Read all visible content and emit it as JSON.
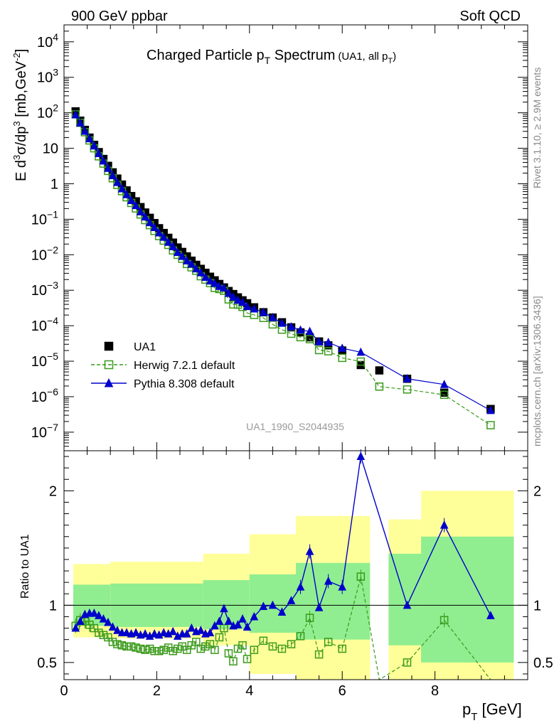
{
  "header": {
    "left": "900 GeV ppbar",
    "right": "Soft QCD"
  },
  "side_labels": {
    "rivet": "Rivet 3.1.10, ≥ 2.9M events",
    "mcplots": "mcplots.cern.ch [arXiv:1306.3436]"
  },
  "chart_data": [
    {
      "type": "scatter",
      "panel": "main",
      "title": "Charged Particle p_T Spectrum",
      "title_parts": {
        "main": "Charged Particle p",
        "sub": "T",
        "rest": " Spectrum",
        "small": "(UA1, all p",
        "small_sub": "T",
        "small_close": ")"
      },
      "ylabel": "E d³σ/dp³ [mb,GeV⁻²]",
      "ylabel_parts": {
        "e": "E d",
        "sup1": "3",
        "sigma": "σ/dp",
        "sup2": "3",
        "unit": " [mb,GeV",
        "sup3": "-2",
        "close": "]"
      },
      "y_scale": "log",
      "ylim": [
        3e-08,
        30000.0
      ],
      "xlim": [
        0,
        10
      ],
      "y_ticks": [
        "10^4",
        "10^3",
        "10^2",
        "10",
        "1",
        "10^-1",
        "10^-2",
        "10^-3",
        "10^-4",
        "10^-5",
        "10^-6",
        "10^-7"
      ],
      "watermark": "UA1_1990_S2044935",
      "legend_position": "bottom-left",
      "series": [
        {
          "name": "UA1",
          "color": "#000000",
          "marker": "filled-square",
          "x": [
            0.25,
            0.35,
            0.45,
            0.55,
            0.65,
            0.75,
            0.85,
            0.95,
            1.05,
            1.15,
            1.25,
            1.35,
            1.45,
            1.55,
            1.65,
            1.75,
            1.85,
            1.95,
            2.05,
            2.15,
            2.25,
            2.35,
            2.45,
            2.55,
            2.65,
            2.75,
            2.85,
            2.95,
            3.05,
            3.15,
            3.25,
            3.35,
            3.45,
            3.55,
            3.65,
            3.75,
            3.85,
            3.95,
            4.1,
            4.3,
            4.5,
            4.7,
            4.9,
            5.1,
            5.3,
            5.5,
            5.7,
            6.0,
            6.4,
            6.8,
            7.4,
            8.2,
            9.2
          ],
          "y": [
            110,
            60,
            33,
            20,
            12.5,
            7.8,
            5.0,
            3.2,
            2.1,
            1.4,
            0.95,
            0.65,
            0.45,
            0.32,
            0.22,
            0.155,
            0.11,
            0.078,
            0.056,
            0.041,
            0.03,
            0.022,
            0.016,
            0.012,
            0.009,
            0.0068,
            0.0052,
            0.004,
            0.0031,
            0.0024,
            0.0019,
            0.0015,
            0.0012,
            0.00095,
            0.00078,
            0.00063,
            0.00052,
            0.00043,
            0.00033,
            0.00024,
            0.00017,
            0.000125,
            9e-05,
            6.5e-05,
            4.7e-05,
            3.6e-05,
            2.8e-05,
            2e-05,
            7.8e-06,
            5.5e-06,
            3.2e-06,
            1.3e-06,
            4.5e-07
          ]
        },
        {
          "name": "Herwig 7.2.1 default",
          "color": "#3a9a1a",
          "marker": "open-square",
          "line": "dashed",
          "x": [
            0.25,
            0.35,
            0.45,
            0.55,
            0.65,
            0.75,
            0.85,
            0.95,
            1.05,
            1.15,
            1.25,
            1.35,
            1.45,
            1.55,
            1.65,
            1.75,
            1.85,
            1.95,
            2.05,
            2.15,
            2.25,
            2.35,
            2.45,
            2.55,
            2.65,
            2.75,
            2.85,
            2.95,
            3.05,
            3.15,
            3.25,
            3.35,
            3.45,
            3.55,
            3.65,
            3.75,
            3.85,
            3.95,
            4.1,
            4.3,
            4.5,
            4.7,
            4.9,
            5.1,
            5.3,
            5.5,
            5.7,
            6.0,
            6.4,
            6.8,
            7.4,
            8.2,
            9.2
          ],
          "ratio": [
            0.82,
            0.87,
            0.86,
            0.83,
            0.8,
            0.76,
            0.74,
            0.72,
            0.68,
            0.66,
            0.65,
            0.64,
            0.64,
            0.63,
            0.62,
            0.61,
            0.62,
            0.6,
            0.6,
            0.61,
            0.63,
            0.6,
            0.62,
            0.64,
            0.61,
            0.65,
            0.68,
            0.62,
            0.64,
            0.66,
            0.61,
            0.72,
            0.8,
            0.58,
            0.51,
            0.62,
            0.65,
            0.53,
            0.61,
            0.69,
            0.64,
            0.62,
            0.66,
            0.73,
            0.89,
            0.57,
            0.68,
            0.62,
            1.25,
            0.35,
            0.5,
            0.87,
            0.35
          ]
        },
        {
          "name": "Pythia 8.308 default",
          "color": "#0000cc",
          "marker": "filled-triangle",
          "line": "solid",
          "x": [
            0.25,
            0.35,
            0.45,
            0.55,
            0.65,
            0.75,
            0.85,
            0.95,
            1.05,
            1.15,
            1.25,
            1.35,
            1.45,
            1.55,
            1.65,
            1.75,
            1.85,
            1.95,
            2.05,
            2.15,
            2.25,
            2.35,
            2.45,
            2.55,
            2.65,
            2.75,
            2.85,
            2.95,
            3.05,
            3.15,
            3.25,
            3.35,
            3.45,
            3.55,
            3.65,
            3.75,
            3.85,
            3.95,
            4.1,
            4.3,
            4.5,
            4.7,
            4.9,
            5.1,
            5.3,
            5.5,
            5.7,
            6.0,
            6.4,
            7.4,
            8.2,
            9.2
          ],
          "ratio": [
            0.8,
            0.86,
            0.92,
            0.93,
            0.93,
            0.91,
            0.88,
            0.85,
            0.81,
            0.78,
            0.76,
            0.76,
            0.75,
            0.76,
            0.74,
            0.75,
            0.73,
            0.75,
            0.74,
            0.76,
            0.75,
            0.77,
            0.73,
            0.75,
            0.75,
            0.8,
            0.77,
            0.78,
            0.75,
            0.76,
            0.82,
            0.86,
            0.97,
            0.86,
            0.82,
            0.83,
            0.88,
            0.81,
            0.9,
            0.99,
            1.0,
            0.94,
            1.04,
            1.16,
            1.47,
            0.98,
            1.21,
            1.16,
            2.3,
            1.0,
            1.7,
            0.91
          ]
        }
      ]
    },
    {
      "type": "band",
      "panel": "ratio",
      "ylabel": "Ratio to UA1",
      "xlabel": "p_T [GeV]",
      "xlabel_parts": {
        "p": "p",
        "sub": "T",
        "unit": " [GeV]"
      },
      "xlim": [
        0,
        10
      ],
      "ylim": [
        0.35,
        2.35
      ],
      "x_ticks": [
        "0",
        "2",
        "4",
        "6",
        "8"
      ],
      "y_ticks": [
        "0.5",
        "1",
        "2"
      ],
      "reference_line": 1,
      "bands": [
        {
          "xmin": 0.2,
          "xmax": 1.0,
          "inner": [
            0.82,
            1.18
          ],
          "outer": [
            0.72,
            1.36
          ]
        },
        {
          "xmin": 1.0,
          "xmax": 3.0,
          "inner": [
            0.81,
            1.19
          ],
          "outer": [
            0.71,
            1.38
          ]
        },
        {
          "xmin": 3.0,
          "xmax": 4.0,
          "inner": [
            0.79,
            1.22
          ],
          "outer": [
            0.65,
            1.45
          ]
        },
        {
          "xmin": 4.0,
          "xmax": 5.0,
          "inner": [
            0.76,
            1.27
          ],
          "outer": [
            0.4,
            1.62
          ]
        },
        {
          "xmin": 5.0,
          "xmax": 6.6,
          "inner": [
            0.7,
            1.37
          ],
          "outer": [
            0.2,
            1.78
          ]
        },
        {
          "xmin": 7.0,
          "xmax": 7.7,
          "inner": [
            0.65,
            1.45
          ],
          "outer": [
            0.3,
            1.75
          ]
        },
        {
          "xmin": 7.7,
          "xmax": 9.7,
          "inner": [
            0.5,
            1.6
          ],
          "outer": [
            0.2,
            2.0
          ]
        }
      ],
      "colors": {
        "inner": "#90ee90",
        "outer": "#ffff99"
      }
    }
  ]
}
